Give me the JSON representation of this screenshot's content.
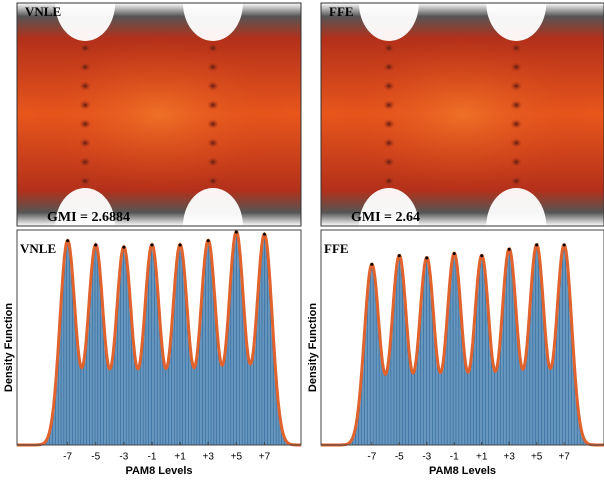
{
  "chart_data": [
    {
      "type": "eye",
      "title": "VNLE",
      "annotation": "GMI = 2.6884"
    },
    {
      "type": "eye",
      "title": "FFE",
      "annotation": "GMI = 2.64"
    },
    {
      "type": "histogram",
      "title": "VNLE",
      "xlabel": "PAM8 Levels",
      "ylabel": "Density Function",
      "x": [
        -7,
        -5,
        -3,
        -1,
        1,
        3,
        5,
        7
      ],
      "values": [
        0.95,
        0.93,
        0.92,
        0.93,
        0.93,
        0.95,
        0.99,
        0.98
      ],
      "xlim": [
        -10.6,
        9.6
      ],
      "ylim": [
        0,
        1
      ],
      "xticks": [
        -7,
        -5,
        -3,
        -1,
        {
          "value": 1,
          "label": "+1"
        },
        {
          "value": 3,
          "label": "+3"
        },
        {
          "value": 5,
          "label": "+5"
        },
        {
          "value": 7,
          "label": "+7"
        }
      ],
      "bar_color": "#4379a8",
      "line_color": "#e0622c"
    },
    {
      "type": "histogram",
      "title": "FFE",
      "xlabel": "PAM8 Levels",
      "ylabel": "Density Function",
      "x": [
        -7,
        -5,
        -3,
        -1,
        1,
        3,
        5,
        7
      ],
      "values": [
        0.84,
        0.88,
        0.87,
        0.89,
        0.88,
        0.91,
        0.93,
        0.93
      ],
      "xlim": [
        -10.7,
        9.9
      ],
      "ylim": [
        0,
        1
      ],
      "xticks": [
        -7,
        -5,
        -3,
        -1,
        {
          "value": 1,
          "label": "+1"
        },
        {
          "value": 3,
          "label": "+3"
        },
        {
          "value": 5,
          "label": "+5"
        },
        {
          "value": 7,
          "label": "+7"
        }
      ],
      "bar_color": "#4379a8",
      "line_color": "#e0622c"
    }
  ]
}
